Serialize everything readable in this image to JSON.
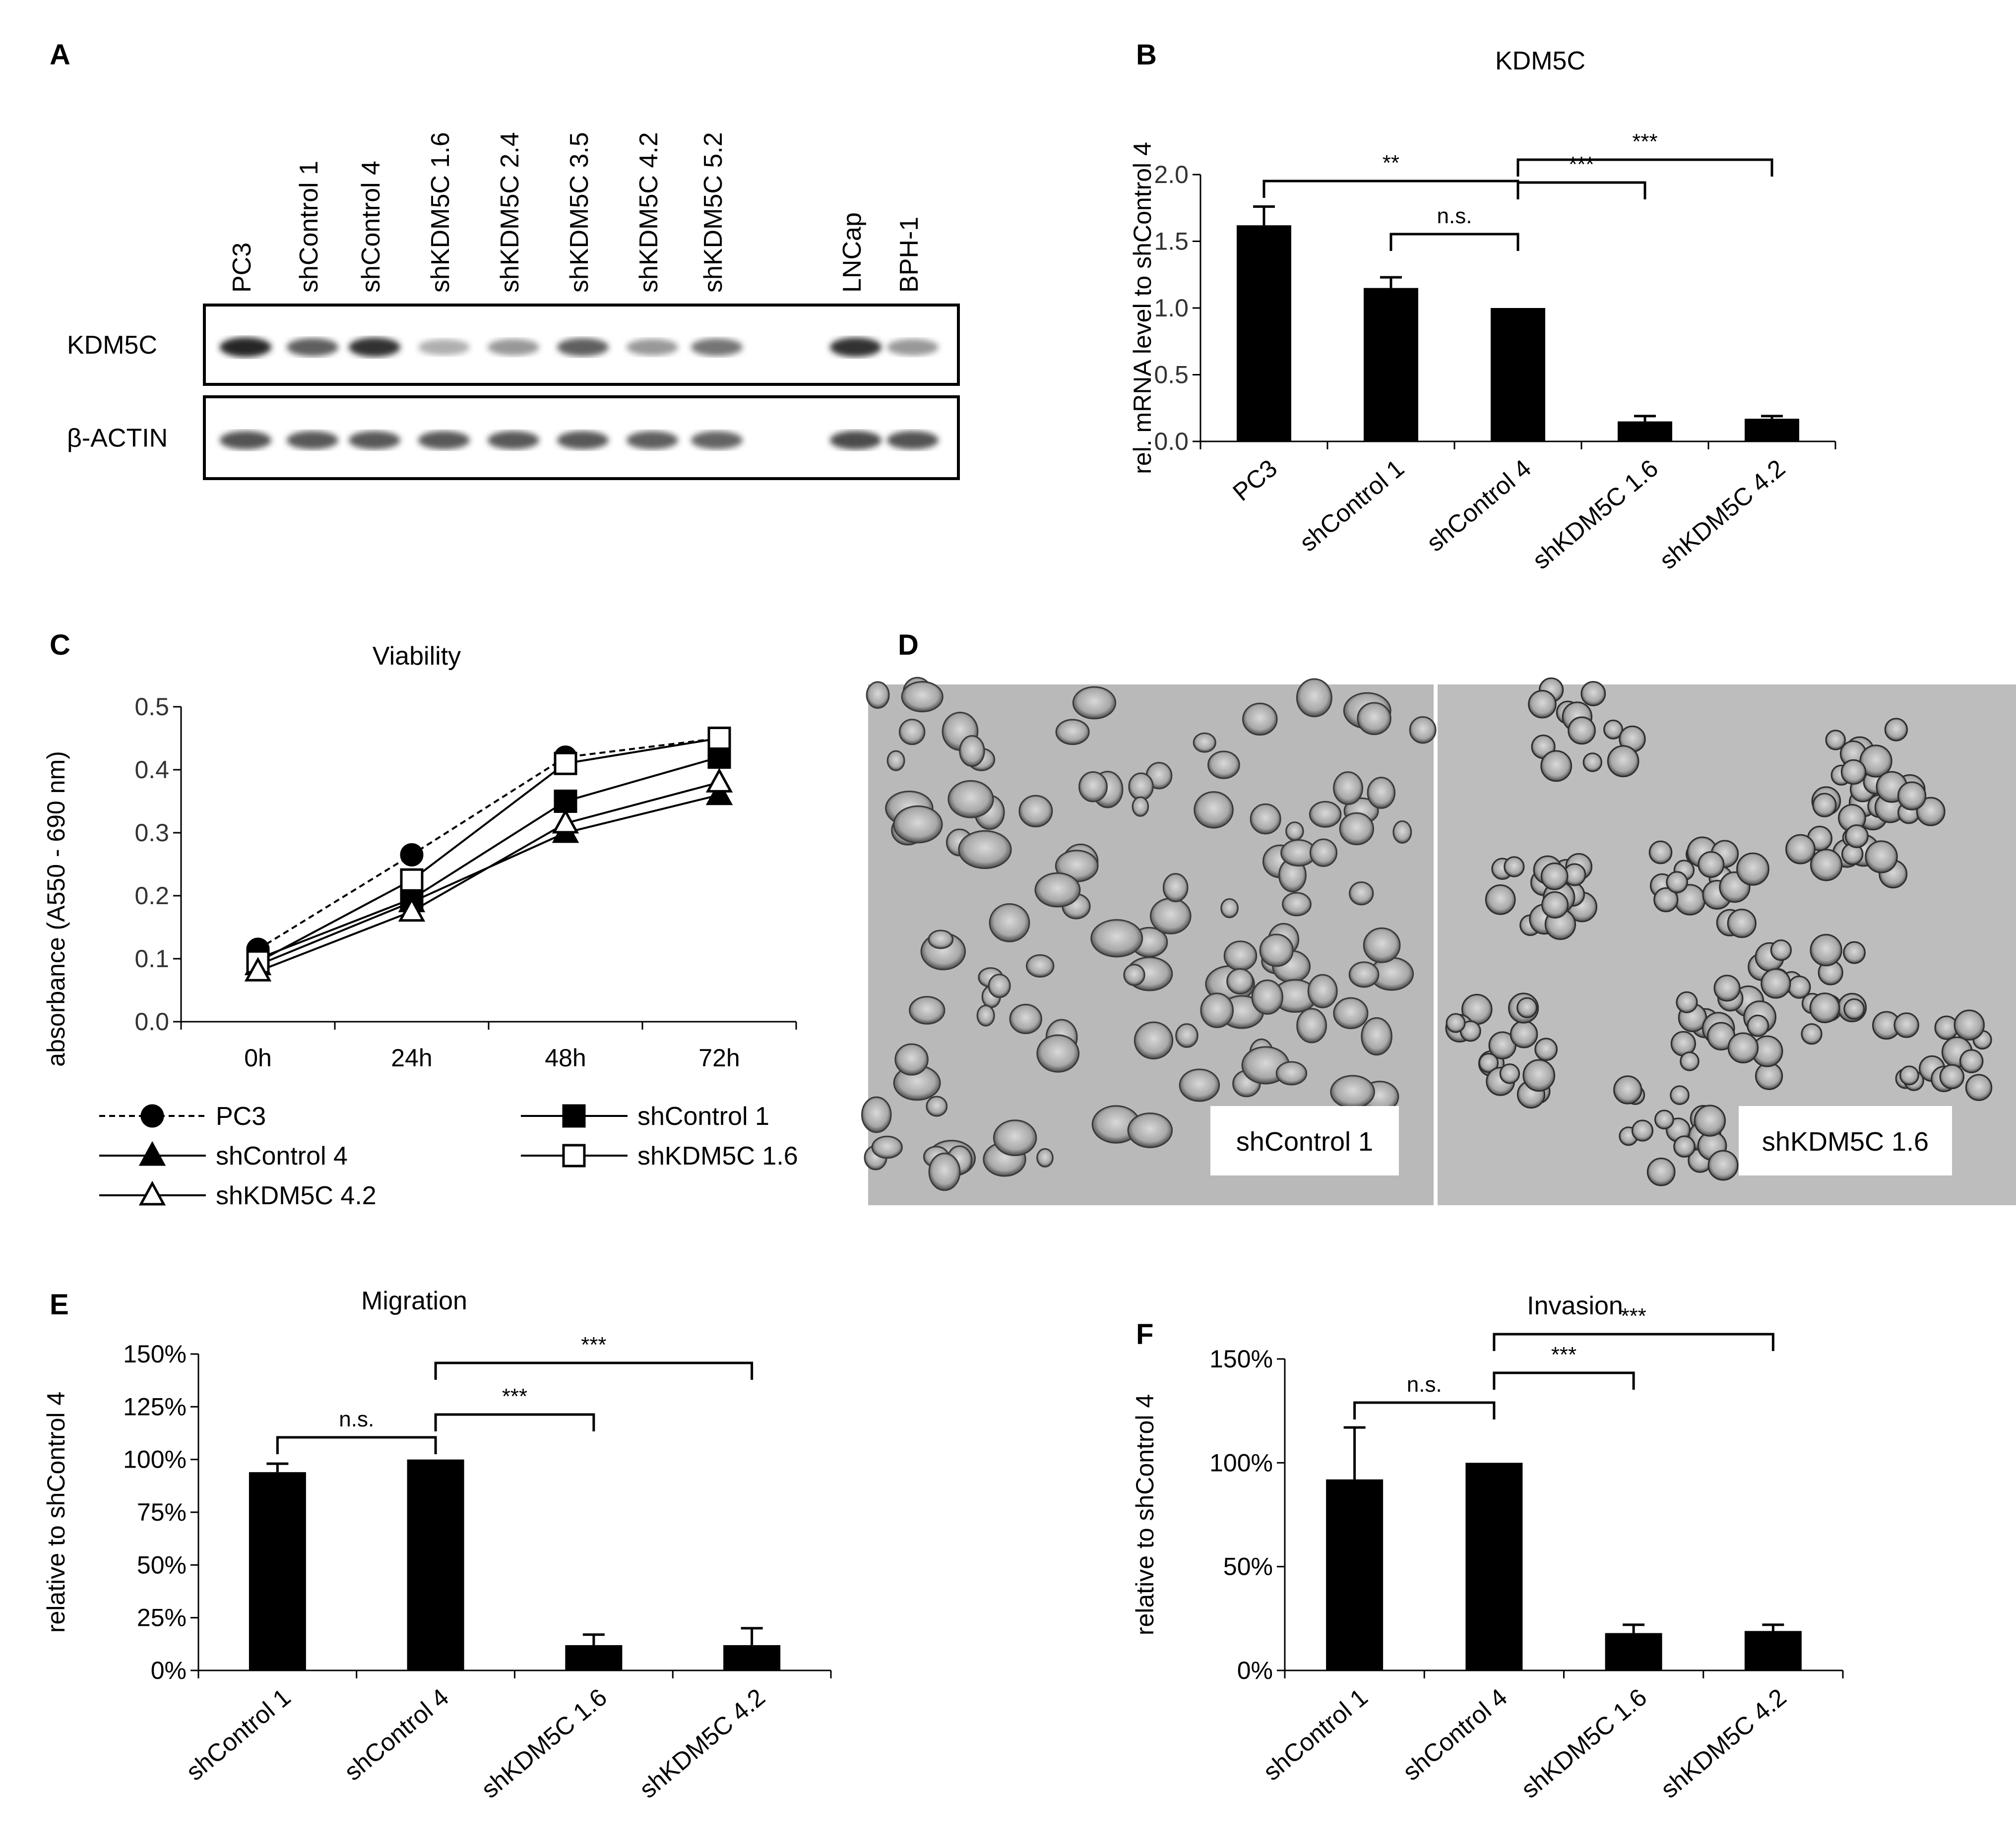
{
  "panel_letters": {
    "A": "A",
    "B": "B",
    "C": "C",
    "D": "D",
    "E": "E",
    "F": "F"
  },
  "blot": {
    "lanes": [
      "PC3",
      "shControl 1",
      "shControl 4",
      "shKDM5C 1.6",
      "shKDM5C 2.4",
      "shKDM5C 3.5",
      "shKDM5C 4.2",
      "shKDM5C 5.2",
      "LNCap",
      "BPH-1"
    ],
    "rows": [
      {
        "label": "KDM5C",
        "intensity": [
          0.95,
          0.7,
          0.9,
          0.35,
          0.45,
          0.7,
          0.45,
          0.6,
          0.9,
          0.45
        ]
      },
      {
        "label": "β-ACTIN",
        "intensity": [
          0.75,
          0.72,
          0.72,
          0.72,
          0.72,
          0.72,
          0.7,
          0.68,
          0.78,
          0.75
        ]
      }
    ]
  },
  "microscopy": {
    "left_label": "shControl 1",
    "right_label": "shKDM5C 1.6"
  },
  "chart_data": [
    {
      "id": "B",
      "type": "bar",
      "title": "KDM5C",
      "ylabel": "rel. mRNA level to shControl 4",
      "categories": [
        "PC3",
        "shControl 1",
        "shControl 4",
        "shKDM5C 1.6",
        "shKDM5C 4.2"
      ],
      "values": [
        1.62,
        1.15,
        1.0,
        0.15,
        0.17
      ],
      "errors": [
        0.14,
        0.08,
        0.0,
        0.04,
        0.02
      ],
      "ylim": [
        0,
        2.0
      ],
      "yticks": [
        "0.0",
        "0.5",
        "1.0",
        "1.5",
        "2.0"
      ],
      "significance": [
        {
          "from": 0,
          "to": 2,
          "label": "**"
        },
        {
          "from": 1,
          "to": 2,
          "label": "n.s."
        },
        {
          "from": 2,
          "to": 3,
          "label": "***"
        },
        {
          "from": 2,
          "to": 4,
          "label": "***"
        }
      ]
    },
    {
      "id": "C",
      "type": "line",
      "title": "Viability",
      "ylabel": "absorbance (A550 - 690 nm)",
      "x": [
        "0h",
        "24h",
        "48h",
        "72h"
      ],
      "ylim": [
        0,
        0.5
      ],
      "yticks": [
        "0.0",
        "0.1",
        "0.2",
        "0.3",
        "0.4",
        "0.5"
      ],
      "series": [
        {
          "name": "PC3",
          "values": [
            0.115,
            0.265,
            0.42,
            0.45
          ],
          "marker": "circle-filled",
          "dashed": true
        },
        {
          "name": "shControl 1",
          "values": [
            0.1,
            0.195,
            0.35,
            0.42
          ],
          "marker": "square-filled",
          "dashed": false
        },
        {
          "name": "shControl 4",
          "values": [
            0.09,
            0.19,
            0.3,
            0.36
          ],
          "marker": "triangle-filled",
          "dashed": false
        },
        {
          "name": "shKDM5C 1.6",
          "values": [
            0.095,
            0.225,
            0.41,
            0.45
          ],
          "marker": "square-open",
          "dashed": false
        },
        {
          "name": "shKDM5C 4.2",
          "values": [
            0.08,
            0.175,
            0.315,
            0.38
          ],
          "marker": "triangle-open",
          "dashed": false
        }
      ]
    },
    {
      "id": "E",
      "type": "bar",
      "title": "Migration",
      "ylabel": "relative to shControl 4",
      "categories": [
        "shControl 1",
        "shControl 4",
        "shKDM5C 1.6",
        "shKDM5C 4.2"
      ],
      "values": [
        94,
        100,
        12,
        12
      ],
      "errors": [
        4,
        0,
        5,
        8
      ],
      "ylim": [
        0,
        150
      ],
      "yticks": [
        "0%",
        "25%",
        "50%",
        "75%",
        "100%",
        "125%",
        "150%"
      ],
      "significance": [
        {
          "from": 0,
          "to": 1,
          "label": "n.s."
        },
        {
          "from": 1,
          "to": 2,
          "label": "***"
        },
        {
          "from": 1,
          "to": 3,
          "label": "***"
        }
      ]
    },
    {
      "id": "F",
      "type": "bar",
      "title": "Invasion",
      "ylabel": "relative to shControl 4",
      "categories": [
        "shControl 1",
        "shControl 4",
        "shKDM5C 1.6",
        "shKDM5C 4.2"
      ],
      "values": [
        92,
        100,
        18,
        19
      ],
      "errors": [
        25,
        0,
        4,
        3
      ],
      "ylim": [
        0,
        150
      ],
      "yticks": [
        "0%",
        "50%",
        "100%",
        "150%"
      ],
      "significance": [
        {
          "from": 0,
          "to": 1,
          "label": "n.s."
        },
        {
          "from": 1,
          "to": 2,
          "label": "***"
        },
        {
          "from": 1,
          "to": 3,
          "label": "***"
        }
      ]
    }
  ]
}
